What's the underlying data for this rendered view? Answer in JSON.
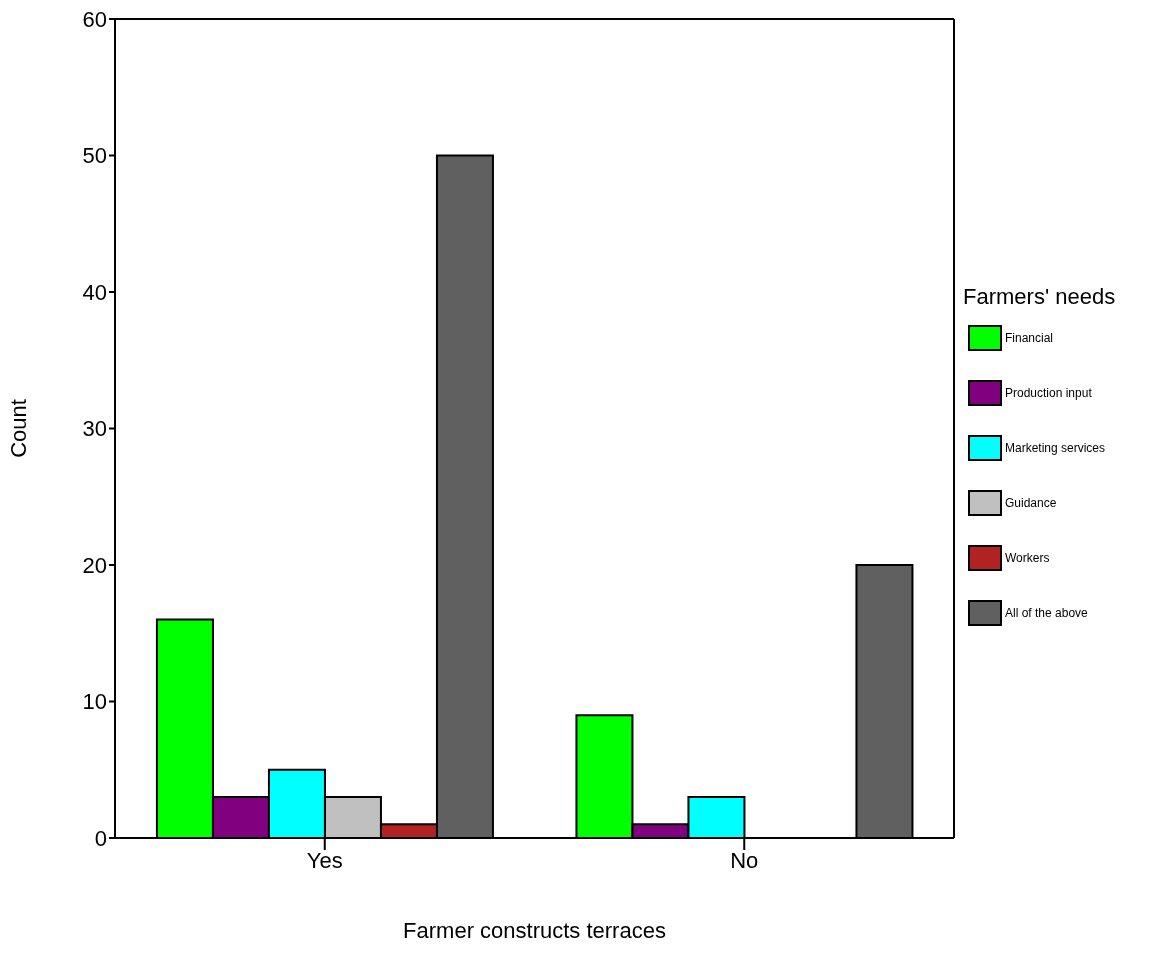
{
  "chart_data": {
    "type": "bar",
    "xlabel": "Farmer constructs terraces",
    "ylabel": "Count",
    "legend_title": "Farmers' needs",
    "categories": [
      "Yes",
      "No"
    ],
    "series": [
      {
        "name": "Financial",
        "color": "#00ff00",
        "values": [
          16,
          9
        ]
      },
      {
        "name": "Production input",
        "color": "#800080",
        "values": [
          3,
          1
        ]
      },
      {
        "name": "Marketing services",
        "color": "#00ffff",
        "values": [
          5,
          3
        ]
      },
      {
        "name": "Guidance",
        "color": "#c0c0c0",
        "values": [
          3,
          0
        ]
      },
      {
        "name": "Workers",
        "color": "#b22222",
        "values": [
          1,
          0
        ]
      },
      {
        "name": "All of the above",
        "color": "#606060",
        "values": [
          50,
          20
        ]
      }
    ],
    "ylim": [
      0,
      60
    ],
    "yticks": [
      0,
      10,
      20,
      30,
      40,
      50,
      60
    ],
    "grid": false,
    "legend": "right"
  }
}
